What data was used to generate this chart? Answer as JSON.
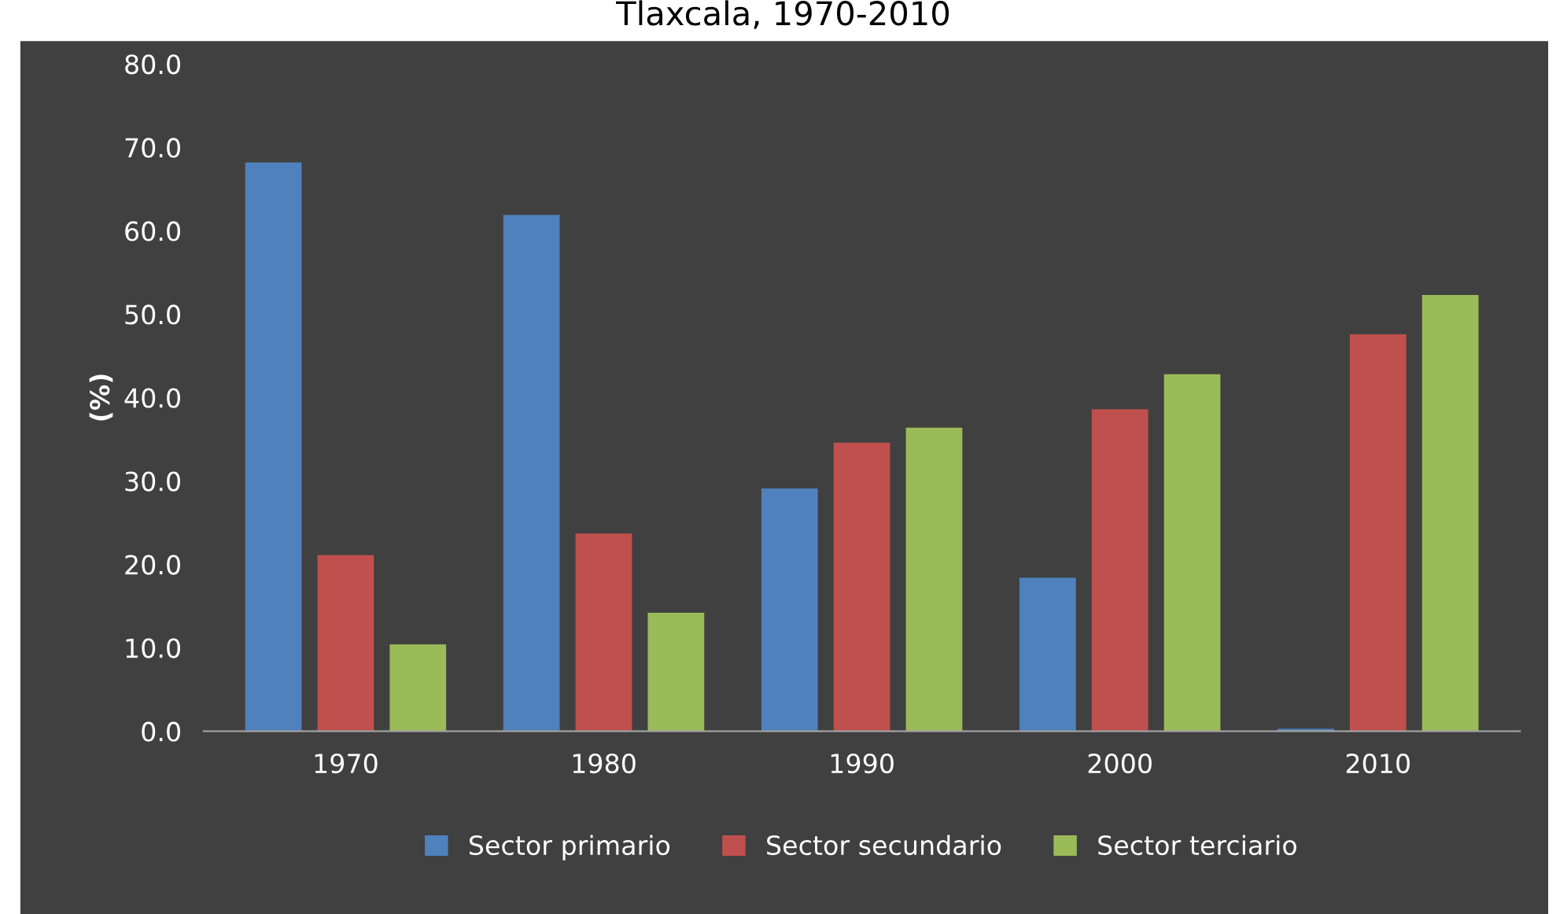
{
  "chart_data": {
    "type": "bar",
    "title": "Tlaxcala, 1970-2010",
    "ylabel": "(%)",
    "categories": [
      "1970",
      "1980",
      "1990",
      "2000",
      "2010"
    ],
    "series": [
      {
        "name": "Sector primario",
        "color": "#4f81bd",
        "values": [
          68.2,
          61.9,
          29.1,
          18.4,
          0.3
        ]
      },
      {
        "name": "Sector secundario",
        "color": "#c0504d",
        "values": [
          21.1,
          23.7,
          34.6,
          38.6,
          47.6
        ]
      },
      {
        "name": "Sector terciario",
        "color": "#9bbb59",
        "values": [
          10.4,
          14.2,
          36.4,
          42.8,
          52.3
        ]
      }
    ],
    "ylim": [
      0,
      80
    ],
    "yticks": [
      {
        "value": 0,
        "label": "0.0"
      },
      {
        "value": 10,
        "label": "10.0"
      },
      {
        "value": 20,
        "label": "20.0"
      },
      {
        "value": 30,
        "label": "30.0"
      },
      {
        "value": 40,
        "label": "40.0"
      },
      {
        "value": 50,
        "label": "50.0"
      },
      {
        "value": 60,
        "label": "60.0"
      },
      {
        "value": 70,
        "label": "70.0"
      },
      {
        "value": 80,
        "label": "80.0"
      }
    ],
    "grid": false,
    "legend": "bottom"
  }
}
